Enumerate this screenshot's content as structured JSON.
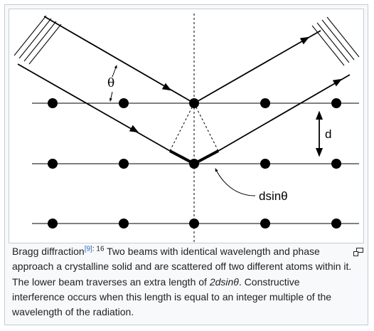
{
  "diagram": {
    "theta_label": "θ",
    "d_label": "d",
    "path_label": "dsinθ"
  },
  "caption": {
    "title": "Bragg diffraction",
    "ref_link": "[9]",
    "ref_pages": ": 16",
    "text_1": " Two beams with identical wavelength and phase approach a crystalline solid and are scattered off two different atoms within it. The lower beam traverses an extra length of ",
    "formula": "2dsinθ",
    "text_2": ". Constructive interference occurs when this length is equal to an integer multiple of the wavelength of the radiation."
  },
  "icons": {
    "enlarge": "enlarge-icon"
  },
  "colors": {
    "link": "#3366cc",
    "border": "#c8ccd1",
    "caption_bg": "#f8f9fa"
  }
}
